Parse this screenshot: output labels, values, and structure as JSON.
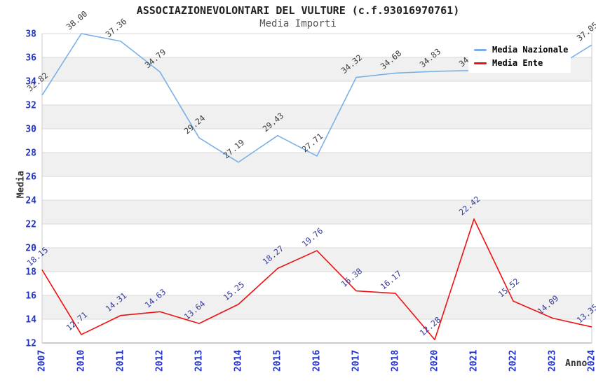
{
  "header": {
    "title": "ASSOCIAZIONEVOLONTARI DEL VULTURE (c.f.93016970761)",
    "subtitle": "Media Importi"
  },
  "chart_data": {
    "type": "line",
    "title": "ASSOCIAZIONEVOLONTARI DEL VULTURE (c.f.93016970761)",
    "subtitle": "Media Importi",
    "xlabel": "Anno",
    "ylabel": "Media",
    "ylim": [
      12,
      38
    ],
    "ytick_step": 2,
    "grid": true,
    "legend_position": "top-right",
    "band_color": "#f0f0f0",
    "grid_color": "#d9d9d9",
    "axis_color": "#999999",
    "border_color": "#cccccc",
    "tick_color": "#2233cc",
    "categories": [
      "2007",
      "2010",
      "2011",
      "2012",
      "2013",
      "2014",
      "2015",
      "2016",
      "2017",
      "2018",
      "2020",
      "2021",
      "2022",
      "2023",
      "2024"
    ],
    "series": [
      {
        "name": "Media Nazionale",
        "color": "#7ab0e8",
        "label_color": "#3c3c3c",
        "values": [
          32.82,
          38.0,
          37.36,
          34.79,
          29.24,
          27.19,
          29.43,
          27.71,
          34.32,
          34.68,
          34.83,
          34.9,
          34.9,
          35.0,
          37.05
        ],
        "point_labels": [
          "32.82",
          "38.00",
          "37.36",
          "34.79",
          "29.24",
          "27.19",
          "29.43",
          "27.71",
          "34.32",
          "34.68",
          "34.83",
          "34.90",
          "34.90",
          "35.00",
          "37.05"
        ]
      },
      {
        "name": "Media Ente",
        "color": "#ee1111",
        "label_color": "#333a99",
        "values": [
          18.15,
          12.71,
          14.31,
          14.63,
          13.64,
          15.25,
          18.27,
          19.76,
          16.38,
          16.17,
          12.28,
          22.42,
          15.52,
          14.09,
          13.35
        ],
        "point_labels": [
          "18.15",
          "12.71",
          "14.31",
          "14.63",
          "13.64",
          "15.25",
          "18.27",
          "19.76",
          "16.38",
          "16.17",
          "12.28",
          "22.42",
          "15.52",
          "14.09",
          "13.35"
        ]
      }
    ]
  }
}
